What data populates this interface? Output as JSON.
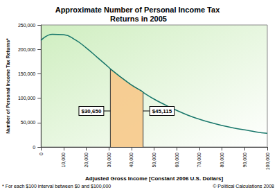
{
  "chart_data": {
    "type": "line",
    "title": "Approximate Number of Personal Income Tax Returns in 2005",
    "x_label": "Adjusted Gross Income [Constant 2006 U.S. Dollars]",
    "y_label": "Number of Personal Income Tax Returns*",
    "x": [
      0,
      5000,
      10000,
      15000,
      20000,
      25000,
      30000,
      30650,
      35000,
      40000,
      45000,
      45115,
      50000,
      55000,
      60000,
      65000,
      70000,
      75000,
      80000,
      85000,
      90000,
      95000,
      100000
    ],
    "values": [
      218000,
      231000,
      230000,
      220000,
      203000,
      183000,
      163000,
      160000,
      144000,
      127000,
      113000,
      112000,
      98000,
      86000,
      75000,
      65000,
      57000,
      50000,
      44000,
      39000,
      35000,
      31000,
      28000
    ],
    "color": "#17766a",
    "xlim": [
      0,
      100000
    ],
    "xticks": [
      0,
      {
        "value": 10000,
        "label": "10,000"
      },
      {
        "value": 20000,
        "label": "20,000"
      },
      {
        "value": 30000,
        "label": "30,000"
      },
      {
        "value": 40000,
        "label": "40,000"
      },
      {
        "value": 50000,
        "label": "50,000"
      },
      {
        "value": 60000,
        "label": "60,000"
      },
      {
        "value": 70000,
        "label": "70,000"
      },
      {
        "value": 80000,
        "label": "80,000"
      },
      {
        "value": 90000,
        "label": "90,000"
      },
      {
        "value": 100000,
        "label": "100,000"
      }
    ],
    "ylim": [
      0,
      250000
    ],
    "yticks": [
      0,
      {
        "value": 50000,
        "label": "50,000"
      },
      {
        "value": 100000,
        "label": "100,000"
      },
      {
        "value": 150000,
        "label": "150,000"
      },
      {
        "value": 200000,
        "label": "200,000"
      },
      {
        "value": 250000,
        "label": "250,000"
      }
    ],
    "grid": false,
    "shaded_range": [
      {
        "value": 30650,
        "label": "$30,650"
      },
      {
        "value": 45115,
        "label": "$45,115"
      }
    ],
    "footnote": "* For each $100 interval between $0 and $100,000",
    "credit": "© Political Calculations 2008"
  }
}
